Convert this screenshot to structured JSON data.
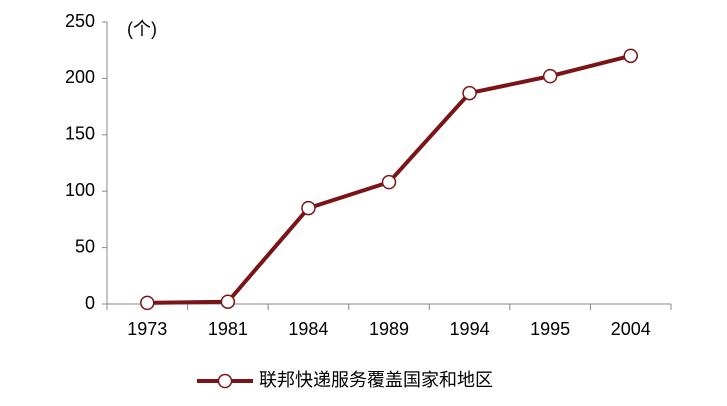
{
  "chart_data": {
    "type": "line",
    "annotation": "(个)",
    "categories": [
      "1973",
      "1981",
      "1984",
      "1989",
      "1994",
      "1995",
      "2004"
    ],
    "series": [
      {
        "name": "联邦快递服务覆盖国家和地区",
        "color": "#7b1416",
        "values": [
          1,
          2,
          85,
          108,
          187,
          202,
          220
        ]
      }
    ],
    "ylim": [
      0,
      250
    ],
    "yticks": [
      0,
      50,
      100,
      150,
      200,
      250
    ],
    "grid": false,
    "legend": "bottom"
  }
}
